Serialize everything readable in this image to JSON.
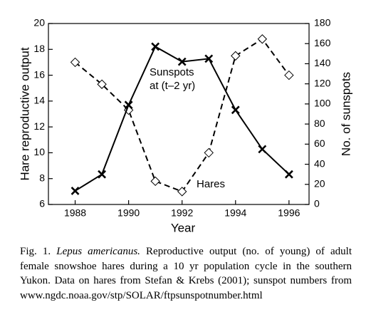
{
  "chart_data": {
    "type": "line",
    "x": [
      1988,
      1989,
      1990,
      1991,
      1992,
      1993,
      1994,
      1995,
      1996
    ],
    "series": [
      {
        "name": "Hares",
        "color": "#000000",
        "dashed": true,
        "marker": "diamond",
        "values": [
          17.0,
          15.3,
          13.3,
          7.8,
          7.0,
          10.0,
          17.5,
          18.8,
          16.0
        ]
      },
      {
        "name": "Sunspots",
        "color": "#000000",
        "dashed": false,
        "marker": "x",
        "axis": "y2",
        "values": [
          13.5,
          30,
          99,
          157,
          142,
          145,
          94,
          55,
          30
        ]
      }
    ],
    "annotation": "at (t–2 yr)",
    "xlabel": "Year",
    "ylabel": "Hare reproductive output",
    "y2label": "No. of sunspots",
    "xlim": [
      1987,
      1996.75
    ],
    "xticks": [
      1988,
      1990,
      1992,
      1994,
      1996
    ],
    "ylim": [
      6,
      20
    ],
    "yticks": [
      6,
      8,
      10,
      12,
      14,
      16,
      18,
      20
    ],
    "y2lim": [
      0,
      180
    ],
    "y2ticks": [
      0,
      20,
      40,
      60,
      80,
      100,
      120,
      140,
      160,
      180
    ]
  },
  "caption": {
    "label": "Fig. 1.",
    "species": "Lepus americanus.",
    "text": "Reproductive output (no. of young) of adult female snowshoe hares during a 10 yr population cycle in the southern Yukon. Data on hares from Stefan & Krebs (2001); sunspot numbers from www.ngdc.noaa.gov/stp/SOLAR/ftpsunspotnumber.html"
  }
}
